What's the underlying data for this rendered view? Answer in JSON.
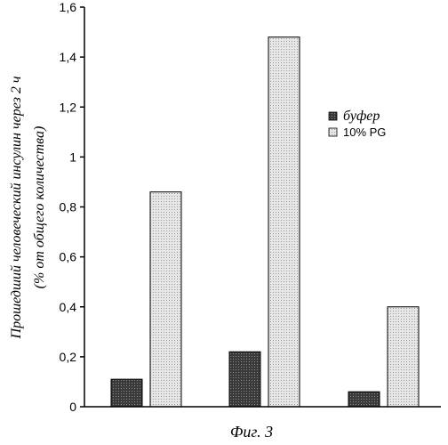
{
  "chart_data": {
    "type": "bar",
    "categories": [
      "",
      "",
      ""
    ],
    "series": [
      {
        "name": "буфер",
        "values": [
          0.11,
          0.22,
          0.06
        ],
        "fill": "#3a3a3a"
      },
      {
        "name": "10% PG",
        "values": [
          0.86,
          1.48,
          0.4
        ],
        "fill": "#dcdcdc"
      }
    ],
    "ylim": [
      0,
      1.6
    ],
    "yticks": [
      0,
      0.2,
      0.4,
      0.6,
      0.8,
      1,
      1.2,
      1.4,
      1.6
    ],
    "ytick_labels": [
      "0",
      "0,2",
      "0,4",
      "0,6",
      "0,8",
      "1",
      "1,2",
      "1,4",
      "1,6"
    ],
    "ylabel_line1": "Прошедший человеческий инсулин через 2 ч",
    "ylabel_line2": "(% от общего количества)",
    "legend_position": "right",
    "grid": false
  },
  "caption": "Фиг. 3"
}
